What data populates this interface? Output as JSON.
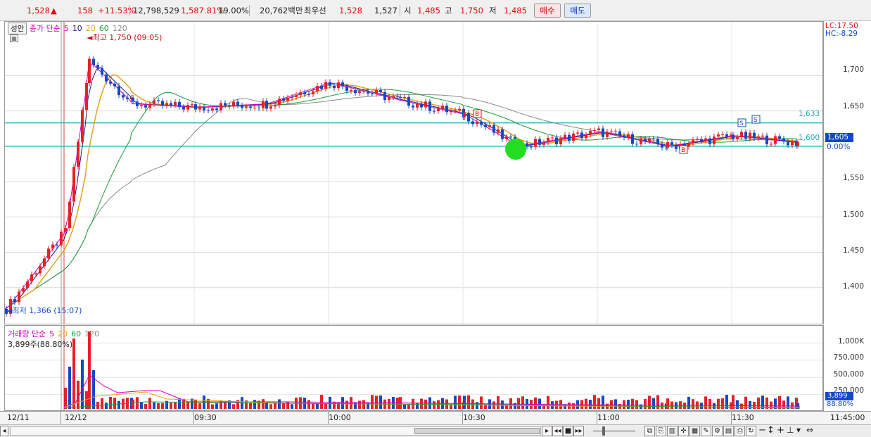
{
  "quote": {
    "price": "1,528",
    "change_arrow": "▲",
    "change": "158",
    "change_pct": "+11.53%",
    "volume": "12,798,529",
    "volume_ratio": "1,587.81%",
    "turnover_pct": "19.00%",
    "amount": "20,762백만",
    "best_label": "최우선",
    "best_ask": "1,528",
    "best_bid": "1,527",
    "open_label": "시",
    "open": "1,485",
    "high_label": "고",
    "high": "1,750",
    "low_label": "저",
    "low": "1,485",
    "buy_label": "매수",
    "sell_label": "매도"
  },
  "price_panel": {
    "tab_label": "성안",
    "legend_main": "종가 단순",
    "ma_periods": [
      "5",
      "10",
      "20",
      "60",
      "120"
    ],
    "high_marker": "최고 1,750 (09:05)",
    "low_marker": "최저 1,366 (15:07)",
    "lc_label": "LC:17.50",
    "hc_label": "HC:-8.29",
    "current_price": "1,605",
    "current_pct": "0.00%",
    "level_upper": "1,633",
    "level_lower": "1,600",
    "signal_b": "B",
    "signal_s": "S",
    "y_ticks": [
      "1,700",
      "1,650",
      "1,600",
      "1,550",
      "1,500",
      "1,450",
      "1,400"
    ]
  },
  "volume_panel": {
    "legend_main": "거래량 단순",
    "ma_periods": [
      "5",
      "20",
      "60",
      "120"
    ],
    "summary": "3,899주(88.80%)",
    "current_volume": "3,899",
    "current_pct": "88.80%",
    "y_ticks": [
      "1,000K",
      "750,000",
      "500,000",
      "250,000"
    ]
  },
  "x_axis": {
    "labels": [
      "12/11",
      "12/12",
      "09:30",
      "10:00",
      "10:30",
      "11:00",
      "11:30",
      "11:45:00"
    ]
  },
  "colors": {
    "up": "#e8202a",
    "down": "#1448c8",
    "ma5": "#d800c0",
    "ma10": "#1a1a80",
    "ma20": "#e6a21c",
    "ma60": "#1a9c3a",
    "ma120": "#8a8a8a",
    "level_line": "#20b8c0",
    "current_badge": "#1448c8"
  },
  "chart_data": {
    "type": "line",
    "title": "",
    "x": [
      "12/11",
      "12/12 09:00",
      "09:05",
      "09:15",
      "09:30",
      "09:45",
      "10:00",
      "10:15",
      "10:30",
      "10:40",
      "11:00",
      "11:15",
      "11:30",
      "11:40"
    ],
    "series": [
      {
        "name": "종가",
        "values": [
          1370,
          1480,
          1720,
          1660,
          1655,
          1660,
          1690,
          1665,
          1645,
          1600,
          1620,
          1600,
          1615,
          1605
        ]
      }
    ],
    "ylim": [
      1350,
      1770
    ],
    "grid": true,
    "reference_lines": [
      1633,
      1600
    ]
  }
}
